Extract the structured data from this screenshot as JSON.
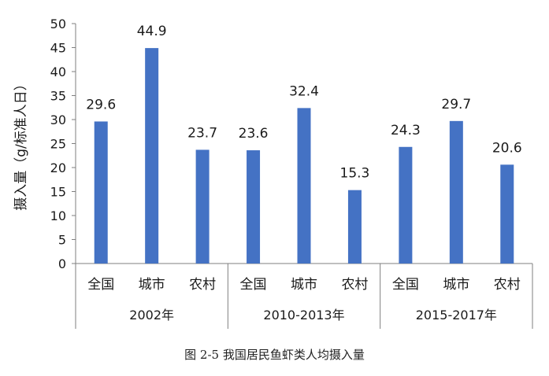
{
  "chart_data": {
    "type": "bar",
    "ylabel": "摄入量（g/标准人日）",
    "ylim": [
      0,
      50
    ],
    "yticks": [
      0,
      5,
      10,
      15,
      20,
      25,
      30,
      35,
      40,
      45,
      50
    ],
    "grid": false,
    "bar_color": "#4472C4",
    "groups": [
      {
        "label": "2002年",
        "categories": [
          "全国",
          "城市",
          "农村"
        ],
        "values": [
          29.6,
          44.9,
          23.7
        ]
      },
      {
        "label": "2010-2013年",
        "categories": [
          "全国",
          "城市",
          "农村"
        ],
        "values": [
          23.6,
          32.4,
          15.3
        ]
      },
      {
        "label": "2015-2017年",
        "categories": [
          "全国",
          "城市",
          "农村"
        ],
        "values": [
          24.3,
          29.7,
          20.6
        ]
      }
    ]
  },
  "caption": "图 2-5 我国居民鱼虾类人均摄入量"
}
